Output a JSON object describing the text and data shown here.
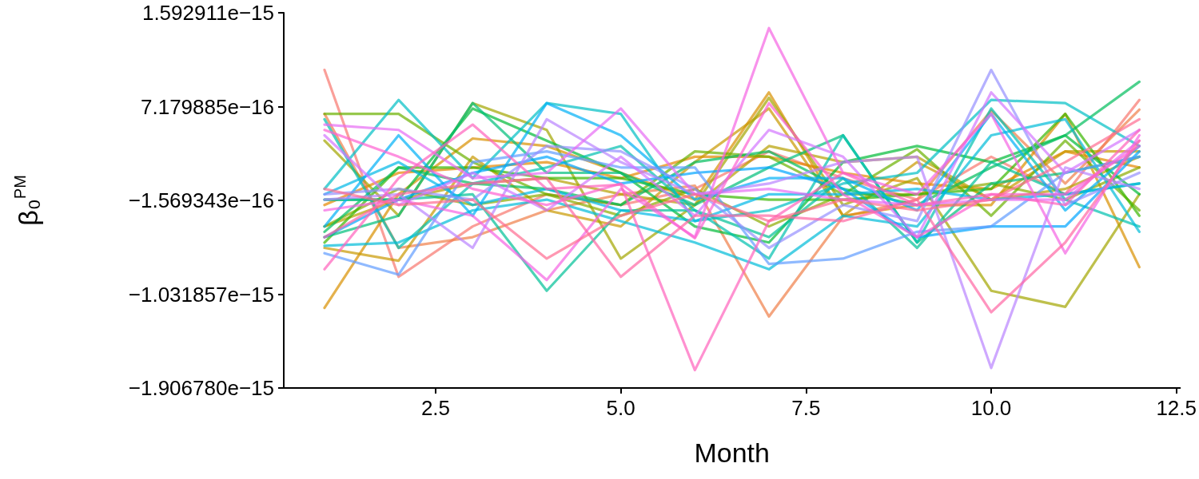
{
  "chart_data": {
    "type": "line",
    "xlabel": "Month",
    "ylabel": "β₀$^{PM}$",
    "x": [
      1,
      2,
      3,
      4,
      5,
      6,
      7,
      8,
      9,
      10,
      11,
      12
    ],
    "xlim": [
      0.45,
      12.55
    ],
    "xticks": [
      2.5,
      {
        "value": 5,
        "label": "5.0"
      },
      7.5,
      {
        "value": 10,
        "label": "10.0"
      },
      12.5
    ],
    "ylim": [
      -1.90678e-15,
      1.592911e-15
    ],
    "yticks": [
      {
        "value": -1.90678e-15,
        "label": "−1.906780e−15"
      },
      {
        "value": -1.031857e-15,
        "label": "−1.031857e−15"
      },
      {
        "value": -1.569343e-16,
        "label": "−1.569343e−16"
      },
      {
        "value": 7.179885e-16,
        "label": "7.179885e−16"
      },
      {
        "value": 1.592911e-15,
        "label": "1.592911e−15"
      }
    ],
    "grid": false,
    "marker": "none",
    "line_style": "solid",
    "series": [
      {
        "color": "#F8766D",
        "values": [
          1.06e-15,
          -8.7e-16,
          -4e-16,
          -1e-16,
          -2e-16,
          -5e-17,
          3e-16,
          5e-17,
          -1.5e-16,
          2.5e-16,
          -1e-16,
          7.8e-16
        ]
      },
      {
        "color": "#EF7F49",
        "values": [
          6.5e-16,
          -6e-16,
          -5e-16,
          -2.5e-16,
          -1e-16,
          -2e-17,
          -1.24e-15,
          -3.1e-16,
          -1.5e-16,
          6.8e-16,
          0,
          6.9e-16
        ]
      },
      {
        "color": "#E58700",
        "values": [
          -2e-16,
          1e-16,
          1.5e-16,
          2e-16,
          5e-17,
          2.5e-16,
          2.5e-16,
          1e-16,
          0,
          -5e-17,
          3e-16,
          1.5e-16
        ]
      },
      {
        "color": "#D89000",
        "values": [
          -1.16e-15,
          -1e-16,
          4.2e-16,
          3.5e-16,
          1e-16,
          -1.5e-16,
          8.5e-16,
          -3e-16,
          -2e-16,
          -2e-16,
          6.5e-16,
          -7.8e-16
        ]
      },
      {
        "color": "#C99800",
        "values": [
          -6e-16,
          -7.2e-16,
          2.5e-16,
          -2.5e-16,
          -4e-16,
          2e-16,
          7e-16,
          -3e-16,
          2e-16,
          -1.5e-16,
          3e-16,
          3e-16
        ]
      },
      {
        "color": "#B79F00",
        "values": [
          -4e-16,
          -1.5e-16,
          0,
          5e-17,
          -1e-16,
          -2e-16,
          3.5e-16,
          2e-16,
          2.5e-16,
          -1.5e-16,
          -5e-17,
          2.5e-16
        ]
      },
      {
        "color": "#A3A500",
        "values": [
          4e-16,
          -3e-16,
          7.5e-16,
          5e-16,
          -7e-16,
          -2e-16,
          8e-16,
          -2e-16,
          5e-17,
          -1e-15,
          -1.15e-15,
          -1e-16
        ]
      },
      {
        "color": "#8BAB00",
        "values": [
          -4e-16,
          -5e-17,
          -2e-16,
          -1e-16,
          -3e-16,
          -5e-17,
          -4e-16,
          -1e-16,
          -1e-16,
          0,
          -1.5e-16,
          1.5e-16
        ]
      },
      {
        "color": "#6BB100",
        "values": [
          6.5e-16,
          6.5e-16,
          2e-16,
          -1e-16,
          -2e-16,
          3e-16,
          2.5e-16,
          -1e-16,
          3.2e-16,
          -3e-16,
          4e-16,
          -2.5e-16
        ]
      },
      {
        "color": "#39B600",
        "values": [
          -5.5e-16,
          1.5e-16,
          1.5e-16,
          5e-17,
          5e-17,
          -1e-16,
          -1.5e-16,
          -1.5e-16,
          -1e-16,
          -5e-17,
          6.5e-16,
          -3e-16
        ]
      },
      {
        "color": "#00BA38",
        "values": [
          -1.5e-16,
          -1.5e-16,
          7e-16,
          4e-16,
          1e-16,
          -4e-16,
          -5.5e-16,
          2e-16,
          3.5e-16,
          2e-16,
          4.5e-16,
          -1e-16
        ]
      },
      {
        "color": "#00BD5C",
        "values": [
          -4.5e-16,
          1.5e-16,
          0,
          -5e-17,
          -2e-16,
          2e-16,
          3e-16,
          -5e-17,
          -2e-16,
          1.5e-16,
          4.5e-16,
          9.5e-16
        ]
      },
      {
        "color": "#00BF7B",
        "values": [
          -5e-16,
          -3e-16,
          7.5e-16,
          1e-16,
          1e-16,
          -2e-16,
          1.5e-16,
          4.5e-16,
          -5.5e-16,
          0,
          1e-16,
          2.5e-16
        ]
      },
      {
        "color": "#00C097",
        "values": [
          -1.5e-16,
          -1.5e-16,
          -1e-16,
          -1e-15,
          -2.5e-16,
          -2.5e-16,
          -5e-16,
          5e-17,
          -6e-16,
          2e-16,
          -1e-16,
          0
        ]
      },
      {
        "color": "#00C0AF",
        "values": [
          6e-16,
          -6e-16,
          0,
          1.5e-16,
          3.5e-16,
          -2.5e-16,
          -7e-16,
          4.5e-16,
          -5.5e-16,
          7e-16,
          -1.5e-16,
          -4e-16
        ]
      },
      {
        "color": "#00BFC4",
        "values": [
          -5e-17,
          7.8e-16,
          5e-17,
          7.5e-16,
          6.5e-16,
          -3.5e-16,
          -2.5e-16,
          0,
          1e-16,
          7.8e-16,
          7.5e-16,
          3.5e-16
        ]
      },
      {
        "color": "#00BCD8",
        "values": [
          -5.8e-16,
          -5.5e-16,
          -2.5e-16,
          -1.5e-16,
          -3.5e-16,
          -5.5e-16,
          -8e-16,
          -3e-16,
          -4e-16,
          4.5e-16,
          6e-16,
          -4.5e-16
        ]
      },
      {
        "color": "#00B8E7",
        "values": [
          -1e-16,
          2e-16,
          -2e-16,
          -5e-17,
          -2.5e-16,
          -3.5e-16,
          -1e-16,
          -1e-16,
          -5e-17,
          -1.5e-16,
          -1e-16,
          0
        ]
      },
      {
        "color": "#00B0F6",
        "values": [
          -4e-16,
          4.5e-16,
          -3e-16,
          7.5e-16,
          4.5e-16,
          -1.5e-16,
          5e-17,
          5e-17,
          -2.5e-16,
          6.5e-16,
          -2.5e-16,
          3.5e-16
        ]
      },
      {
        "color": "#00A5FF",
        "values": [
          -5e-16,
          -1.5e-16,
          1e-16,
          2.5e-16,
          0,
          1e-16,
          1.5e-16,
          -5e-17,
          -5e-16,
          -4e-16,
          -4e-16,
          3e-16
        ]
      },
      {
        "color": "#619CFF",
        "values": [
          -6.5e-16,
          -8.5e-16,
          2e-16,
          3e-16,
          1.5e-16,
          1.5e-16,
          -7.5e-16,
          -7e-16,
          -4.5e-16,
          -4e-16,
          1e-16,
          2.5e-16
        ]
      },
      {
        "color": "#9590FF",
        "values": [
          -1e-16,
          -5e-17,
          -1.5e-16,
          3.5e-16,
          3e-16,
          -5e-17,
          -6e-16,
          -2e-16,
          -3.5e-16,
          1.06e-15,
          -2e-16,
          1e-16
        ]
      },
      {
        "color": "#B983FF",
        "values": [
          -1.5e-16,
          -1e-16,
          -6e-16,
          6e-16,
          2e-16,
          -1e-16,
          0,
          2e-16,
          2.5e-16,
          -1.72e-15,
          1.5e-16,
          -5e-17
        ]
      },
      {
        "color": "#D376FF",
        "values": [
          4.5e-16,
          -2e-16,
          1e-16,
          -2.5e-16,
          2.5e-16,
          -3e-16,
          5e-16,
          2.5e-16,
          -5e-16,
          8.5e-16,
          1e-16,
          5e-16
        ]
      },
      {
        "color": "#E76BF3",
        "values": [
          5.5e-16,
          5e-16,
          5e-17,
          1e-16,
          7e-16,
          -1e-16,
          -5e-17,
          -1.5e-16,
          -2e-16,
          -1.5e-16,
          -1.5e-16,
          4e-16
        ]
      },
      {
        "color": "#F564E3",
        "values": [
          -2.5e-16,
          -1.5e-16,
          -3e-16,
          -9e-16,
          -5e-17,
          -5e-16,
          1.45e-15,
          1e-16,
          -1e-16,
          6.5e-16,
          -6.5e-16,
          4.5e-16
        ]
      },
      {
        "color": "#FD61D1",
        "values": [
          5e-16,
          2.5e-16,
          -5e-17,
          -2e-16,
          0,
          -5.1e-16,
          7.5e-16,
          -1e-16,
          -5e-16,
          -1e-16,
          -1e-16,
          3.5e-16
        ]
      },
      {
        "color": "#FF62BC",
        "values": [
          -8e-16,
          5e-17,
          5.5e-16,
          -5e-17,
          -1e-17,
          -1.74e-15,
          -3.5e-16,
          1e-16,
          -2e-16,
          -1e-16,
          -2e-16,
          5e-16
        ]
      },
      {
        "color": "#FF67A4",
        "values": [
          -5e-16,
          -1e-16,
          0,
          5e-17,
          -8.7e-16,
          -3e-16,
          -3e-16,
          -3.5e-16,
          -1.5e-16,
          -1.2e-15,
          -5.5e-16,
          4e-16
        ]
      },
      {
        "color": "#FF6C91",
        "values": [
          -5e-17,
          -2e-16,
          -1.5e-16,
          -7e-16,
          -3e-16,
          -1e-16,
          -3.5e-16,
          -1.5e-16,
          -2.5e-16,
          -1.5e-16,
          2e-16,
          6e-16
        ]
      }
    ]
  }
}
